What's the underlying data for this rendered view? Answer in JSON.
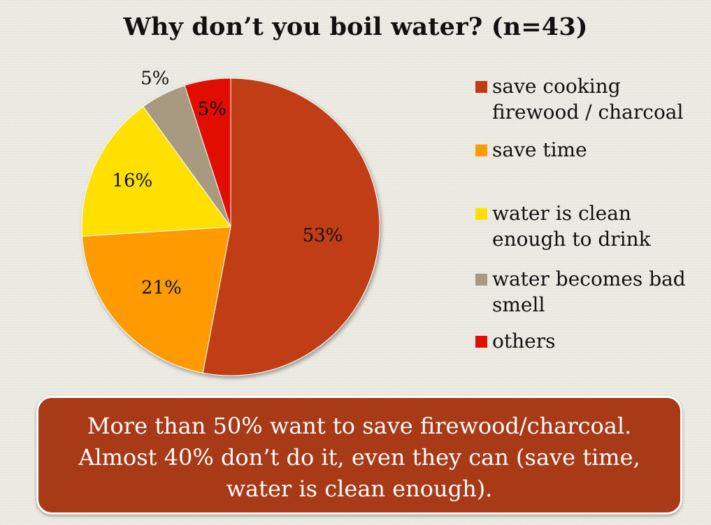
{
  "chart_data": {
    "type": "pie",
    "title": "Why don’t you boil water? (n=43)",
    "start_angle_deg": 0,
    "direction": "clockwise",
    "slices": [
      {
        "label": "save cooking\nfirewood / charcoal",
        "value": 53,
        "display": "53%",
        "color": "#c03c12"
      },
      {
        "label": "save time",
        "value": 21,
        "display": "21%",
        "color": "#ff9a00"
      },
      {
        "label": "water is clean\nenough to drink",
        "value": 16,
        "display": "16%",
        "color": "#ffe000"
      },
      {
        "label": "water becomes bad\nsmell",
        "value": 5,
        "display": "5%",
        "color": "#a89a80"
      },
      {
        "label": "others",
        "value": 5,
        "display": "5%",
        "color": "#e00f00"
      }
    ],
    "legend_position": "right"
  },
  "callout": {
    "text": "More than 50% want to save firewood/charcoal.\nAlmost 40% don’t do it, even they can (save time,\nwater is clean enough)."
  }
}
